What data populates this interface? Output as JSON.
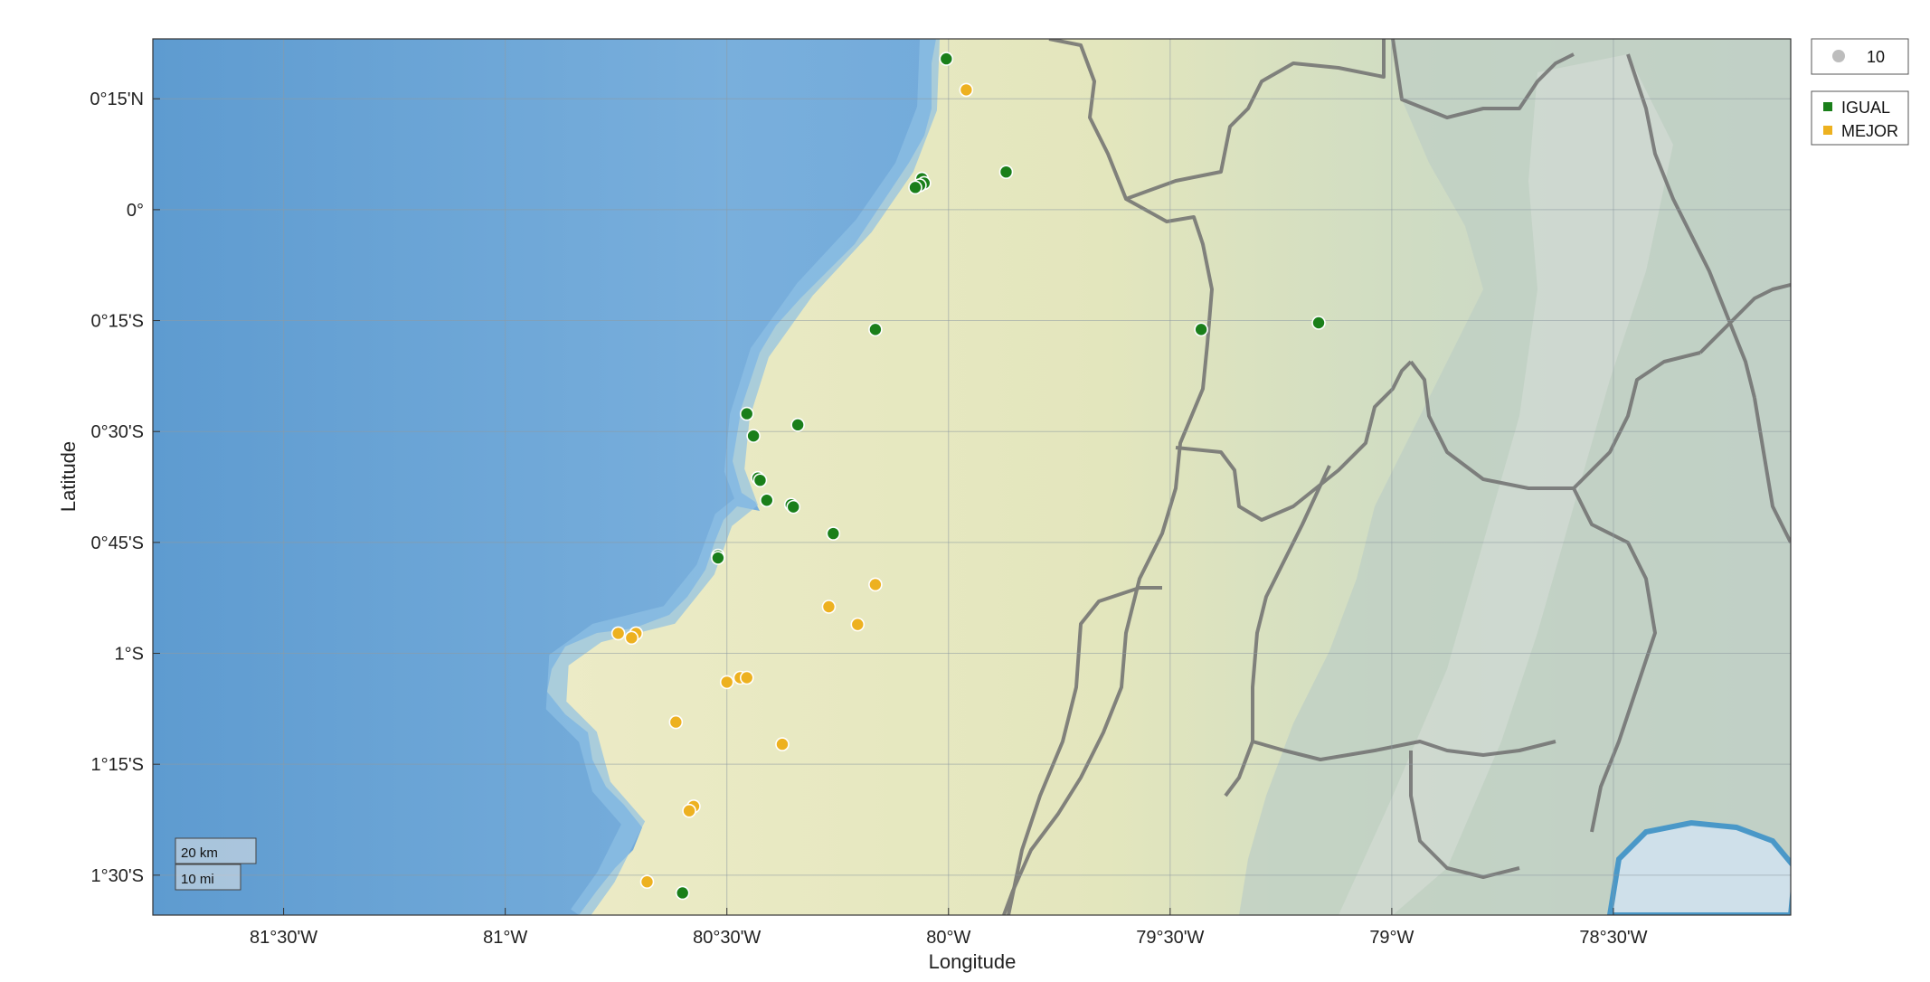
{
  "axes": {
    "xlabel": "Longitude",
    "ylabel": "Latitude",
    "x_ticks": [
      {
        "value": -81.5,
        "label": "81°30'W"
      },
      {
        "value": -81.0,
        "label": "81°W"
      },
      {
        "value": -80.5,
        "label": "80°30'W"
      },
      {
        "value": -80.0,
        "label": "80°W"
      },
      {
        "value": -79.5,
        "label": "79°30'W"
      },
      {
        "value": -79.0,
        "label": "79°W"
      },
      {
        "value": -78.5,
        "label": "78°30'W"
      }
    ],
    "y_ticks": [
      {
        "value": 0.25,
        "label": "0°15'N"
      },
      {
        "value": 0.0,
        "label": "0°"
      },
      {
        "value": -0.25,
        "label": "0°15'S"
      },
      {
        "value": -0.5,
        "label": "0°30'S"
      },
      {
        "value": -0.75,
        "label": "0°45'S"
      },
      {
        "value": -1.0,
        "label": "1°S"
      },
      {
        "value": -1.25,
        "label": "1°15'S"
      },
      {
        "value": -1.5,
        "label": "1°30'S"
      }
    ]
  },
  "legend": {
    "size_label": "10",
    "size_color": "#bdbdbd",
    "entries": [
      {
        "label": "IGUAL",
        "color": "#1a7f1a"
      },
      {
        "label": "MEJOR",
        "color": "#edb120"
      }
    ]
  },
  "scale_bar": {
    "km_label": "20 km",
    "mi_label": "10 mi"
  },
  "colors": {
    "ocean_deep": "#5e9bd0",
    "ocean_shallow": "#8dbde3",
    "land": "#e6e6bf",
    "mountains": "#b9c9be",
    "borders": "#6f6f6f",
    "grid": "#9aa3a8"
  },
  "chart_data": {
    "type": "scatter",
    "xlim": [
      -81.795,
      -78.1
    ],
    "ylim": [
      -1.59,
      0.385
    ],
    "series": [
      {
        "name": "IGUAL",
        "color": "#1a7f1a",
        "points": [
          [
            -80.005,
            0.34
          ],
          [
            -79.87,
            0.085
          ],
          [
            -80.06,
            0.07
          ],
          [
            -80.055,
            0.06
          ],
          [
            -80.065,
            0.055
          ],
          [
            -80.075,
            0.05
          ],
          [
            -80.165,
            -0.27
          ],
          [
            -79.43,
            -0.27
          ],
          [
            -79.165,
            -0.255
          ],
          [
            -80.34,
            -0.485
          ],
          [
            -80.455,
            -0.46
          ],
          [
            -80.44,
            -0.51
          ],
          [
            -80.43,
            -0.605
          ],
          [
            -80.425,
            -0.61
          ],
          [
            -80.41,
            -0.655
          ],
          [
            -80.355,
            -0.665
          ],
          [
            -80.35,
            -0.67
          ],
          [
            -80.26,
            -0.73
          ],
          [
            -80.52,
            -0.78
          ],
          [
            -80.52,
            -0.785
          ],
          [
            -80.6,
            -1.54
          ]
        ]
      },
      {
        "name": "MEJOR",
        "color": "#edb120",
        "points": [
          [
            -79.96,
            0.27
          ],
          [
            -80.165,
            -0.845
          ],
          [
            -80.27,
            -0.895
          ],
          [
            -80.205,
            -0.935
          ],
          [
            -80.745,
            -0.955
          ],
          [
            -80.705,
            -0.955
          ],
          [
            -80.715,
            -0.965
          ],
          [
            -80.47,
            -1.055
          ],
          [
            -80.455,
            -1.055
          ],
          [
            -80.5,
            -1.065
          ],
          [
            -80.615,
            -1.155
          ],
          [
            -80.375,
            -1.205
          ],
          [
            -80.575,
            -1.345
          ],
          [
            -80.585,
            -1.355
          ],
          [
            -80.68,
            -1.515
          ]
        ]
      }
    ]
  }
}
